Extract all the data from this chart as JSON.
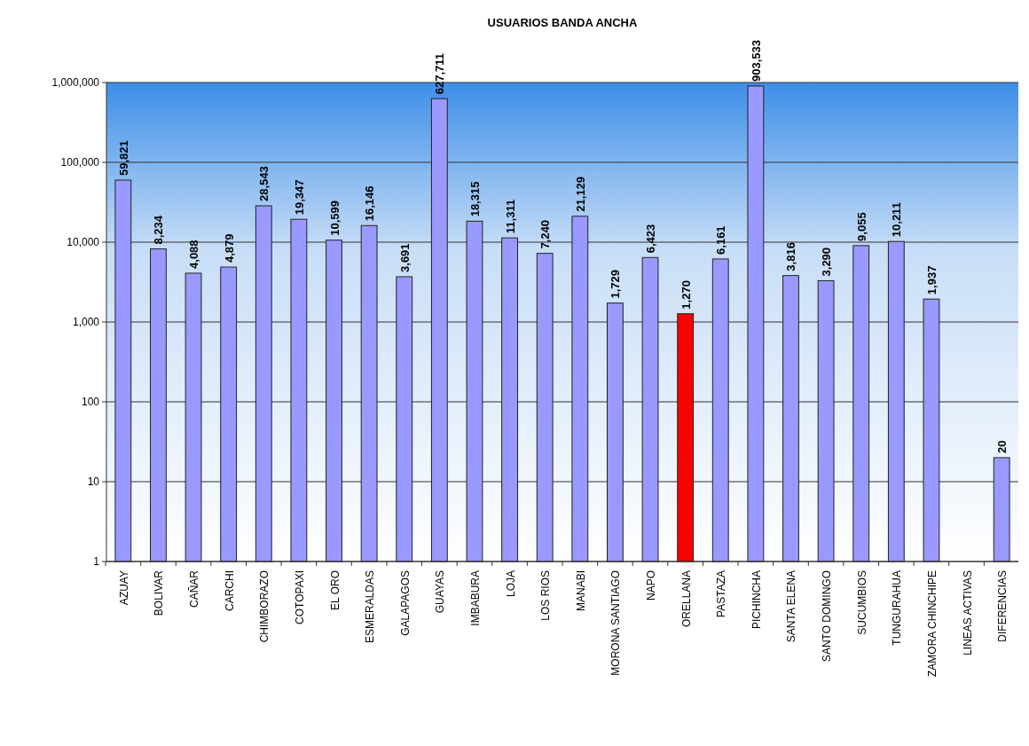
{
  "chart_data": {
    "type": "bar",
    "title": "USUARIOS BANDA ANCHA",
    "categories": [
      "AZUAY",
      "BOLIVAR",
      "CAÑAR",
      "CARCHI",
      "CHIMBORAZO",
      "COTOPAXI",
      "EL ORO",
      "ESMERALDAS",
      "GALAPAGOS",
      "GUAYAS",
      "IMBABURA",
      "LOJA",
      "LOS RIOS",
      "MANABI",
      "MORONA SANTIAGO",
      "NAPO",
      "ORELLANA",
      "PASTAZA",
      "PICHINCHA",
      "SANTA ELENA",
      "SANTO DOMINGO",
      "SUCUMBIOS",
      "TUNGURAHUA",
      "ZAMORA CHINCHIPE",
      "LINEAS ACTIVAS",
      "DIFERENCIAS"
    ],
    "values": [
      59821,
      8234,
      4088,
      4879,
      28543,
      19347,
      10599,
      16146,
      3691,
      627711,
      18315,
      11311,
      7240,
      21129,
      1729,
      6423,
      1270,
      6161,
      903533,
      3816,
      3290,
      9055,
      10211,
      1937,
      null,
      20
    ],
    "value_labels": [
      "59,821",
      "8,234",
      "4,088",
      "4,879",
      "28,543",
      "19,347",
      "10,599",
      "16,146",
      "3,691",
      "627,711",
      "18,315",
      "11,311",
      "7,240",
      "21,129",
      "1,729",
      "6,423",
      "1,270",
      "6,161",
      "903,533",
      "3,816",
      "3,290",
      "9,055",
      "10,211",
      "1,937",
      null,
      "20"
    ],
    "colors": [
      "#9999ff",
      "#9999ff",
      "#9999ff",
      "#9999ff",
      "#9999ff",
      "#9999ff",
      "#9999ff",
      "#9999ff",
      "#9999ff",
      "#9999ff",
      "#9999ff",
      "#9999ff",
      "#9999ff",
      "#9999ff",
      "#9999ff",
      "#9999ff",
      "#ff0000",
      "#9999ff",
      "#9999ff",
      "#9999ff",
      "#9999ff",
      "#9999ff",
      "#9999ff",
      "#9999ff",
      null,
      "#9999ff"
    ],
    "log": true,
    "ylim": [
      1,
      1000000
    ],
    "yticks": [
      1,
      10,
      100,
      {
        "value": 1000,
        "label": "1,000"
      },
      {
        "value": 10000,
        "label": "10,000"
      },
      {
        "value": 100000,
        "label": "100,000"
      },
      {
        "value": 1000000,
        "label": "1,000,000"
      }
    ],
    "grid": "y"
  }
}
